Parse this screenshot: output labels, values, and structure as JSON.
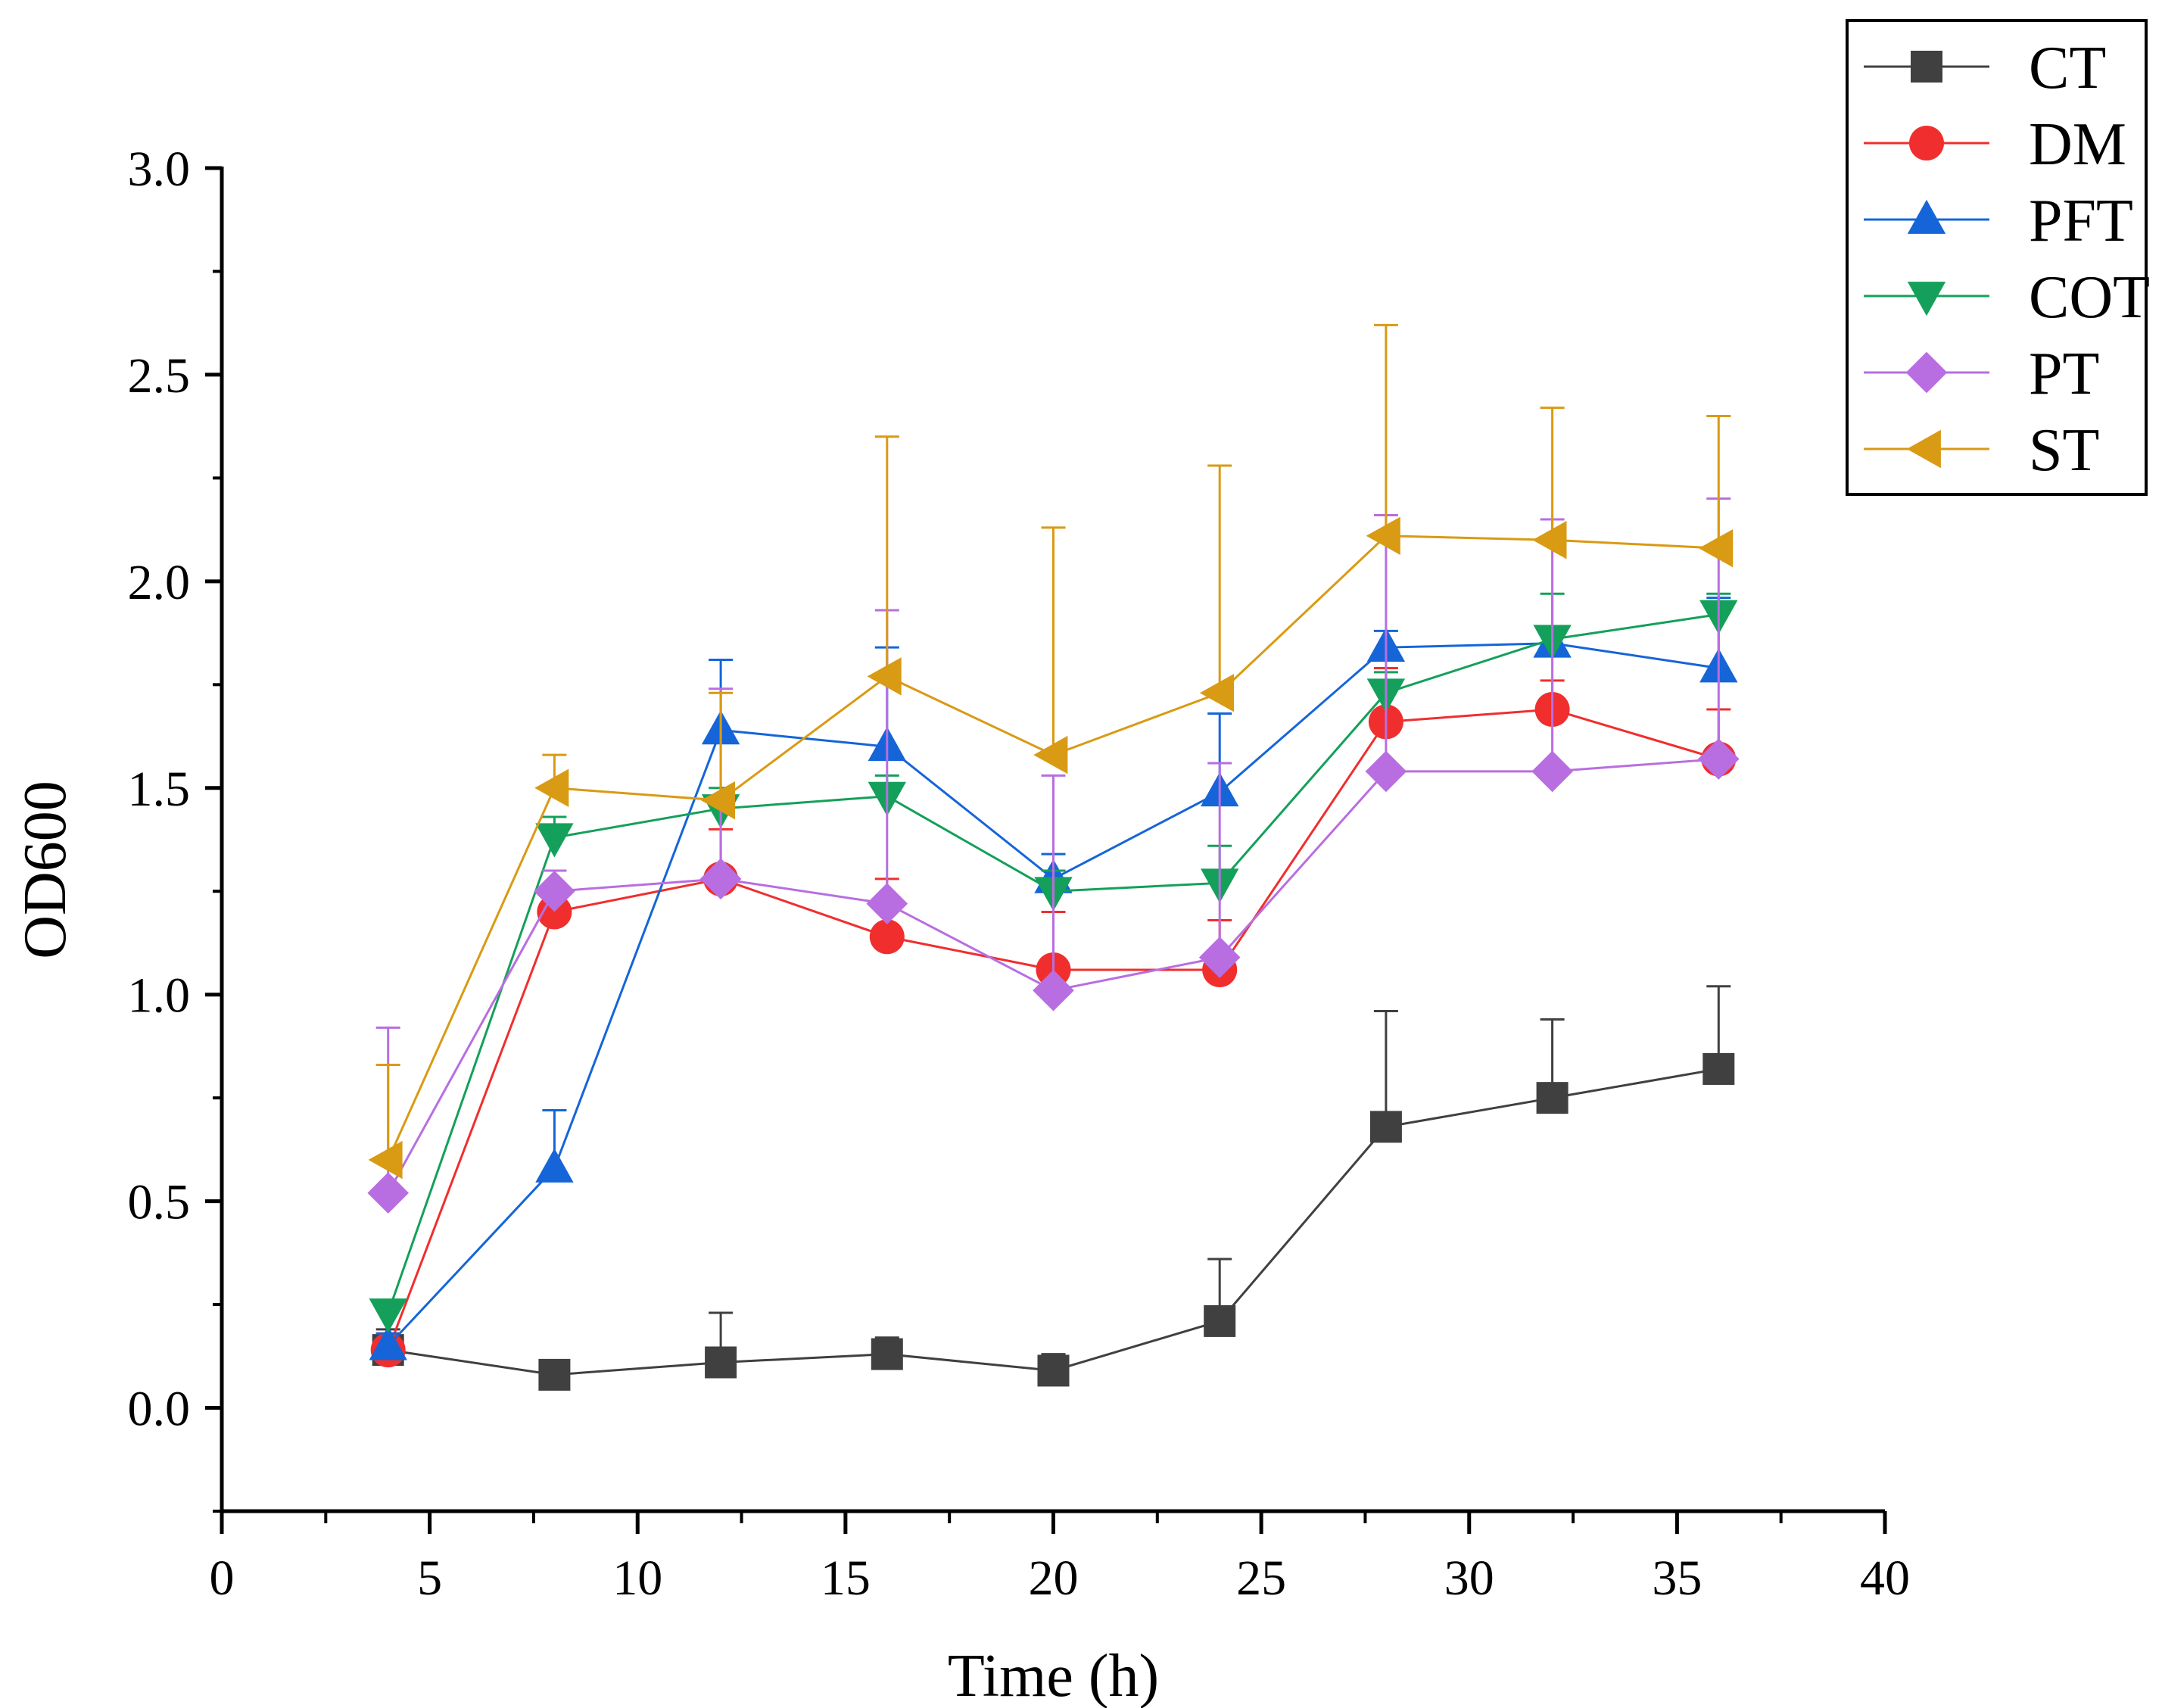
{
  "chart_data": {
    "type": "line",
    "title": "",
    "xlabel": "Time (h)",
    "ylabel": "OD600",
    "xlim": [
      0,
      40
    ],
    "ylim": [
      -0.25,
      3.0
    ],
    "xticks": [
      0,
      5,
      10,
      15,
      20,
      25,
      30,
      35,
      40
    ],
    "yticks": [
      0.0,
      0.5,
      1.0,
      1.5,
      2.0,
      2.5,
      3.0
    ],
    "xtick_labels": [
      "0",
      "5",
      "10",
      "15",
      "20",
      "25",
      "30",
      "35",
      "40"
    ],
    "ytick_labels": [
      "0.0",
      "0.5",
      "1.0",
      "1.5",
      "2.0",
      "2.5",
      "3.0"
    ],
    "x": [
      4,
      8,
      12,
      16,
      20,
      24,
      28,
      32,
      36
    ],
    "legend_position": "top-right",
    "grid": false,
    "series": [
      {
        "name": "CT",
        "marker": "square",
        "color": "#404040",
        "values": [
          0.14,
          0.08,
          0.11,
          0.13,
          0.09,
          0.21,
          0.68,
          0.75,
          0.82
        ],
        "errors": [
          0.05,
          0.0,
          0.12,
          0.04,
          0.04,
          0.15,
          0.28,
          0.19,
          0.2
        ]
      },
      {
        "name": "DM",
        "marker": "circle",
        "color": "#f02e2e",
        "values": [
          0.14,
          1.2,
          1.28,
          1.14,
          1.06,
          1.06,
          1.66,
          1.69,
          1.57
        ],
        "errors": [
          0.04,
          0.04,
          0.12,
          0.14,
          0.14,
          0.12,
          0.13,
          0.07,
          0.12
        ]
      },
      {
        "name": "PFT",
        "marker": "triangle-up",
        "color": "#1565d8",
        "values": [
          0.15,
          0.58,
          1.64,
          1.6,
          1.28,
          1.49,
          1.84,
          1.85,
          1.79
        ],
        "errors": [
          0.03,
          0.14,
          0.17,
          0.24,
          0.06,
          0.19,
          0.04,
          0.03,
          0.17
        ]
      },
      {
        "name": "COT",
        "marker": "triangle-down",
        "color": "#14a05a",
        "values": [
          0.23,
          1.38,
          1.45,
          1.48,
          1.25,
          1.27,
          1.73,
          1.86,
          1.92
        ],
        "errors": [
          0.02,
          0.05,
          0.05,
          0.05,
          0.05,
          0.09,
          0.05,
          0.11,
          0.05
        ]
      },
      {
        "name": "PT",
        "marker": "diamond",
        "color": "#b86ee0",
        "values": [
          0.52,
          1.25,
          1.28,
          1.22,
          1.01,
          1.09,
          1.54,
          1.54,
          1.57
        ],
        "errors": [
          0.4,
          0.05,
          0.46,
          0.71,
          0.52,
          0.47,
          0.62,
          0.61,
          0.63
        ]
      },
      {
        "name": "ST",
        "marker": "triangle-left",
        "color": "#d99a14",
        "values": [
          0.6,
          1.5,
          1.47,
          1.77,
          1.58,
          1.73,
          2.11,
          2.1,
          2.08
        ],
        "errors": [
          0.23,
          0.08,
          0.26,
          0.58,
          0.55,
          0.55,
          0.51,
          0.32,
          0.32
        ]
      }
    ]
  }
}
